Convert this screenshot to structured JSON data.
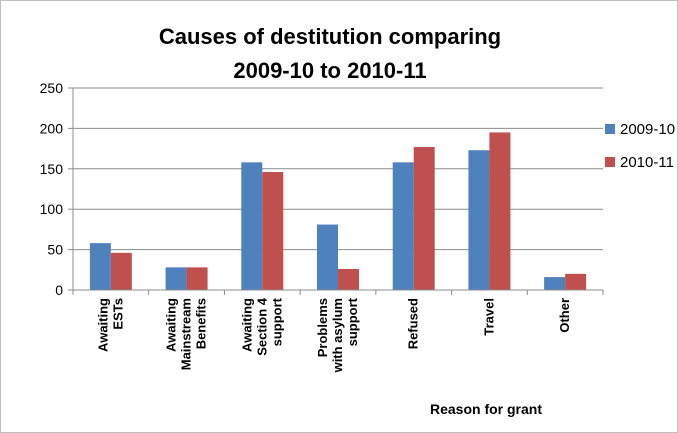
{
  "chart_data": {
    "type": "bar",
    "title": [
      "Causes of destitution comparing",
      "2009-10 to 2010-11"
    ],
    "xlabel": "Reason for grant",
    "ylabel": "",
    "ylim": [
      0,
      250
    ],
    "yticks": [
      0,
      50,
      100,
      150,
      200,
      250
    ],
    "grid": true,
    "legend_position": "right",
    "categories": [
      [
        "Awaiting",
        "ESTs"
      ],
      [
        "Awaiting",
        "Mainstream",
        "Benefits"
      ],
      [
        "Awaiting",
        "Section 4",
        "support"
      ],
      [
        "Problems",
        "with asylum",
        "support"
      ],
      [
        "Refused"
      ],
      [
        "Travel"
      ],
      [
        "Other"
      ]
    ],
    "series": [
      {
        "name": "2009-10",
        "color": "#4f81bd",
        "values": [
          58,
          28,
          158,
          81,
          158,
          173,
          16
        ]
      },
      {
        "name": "2010-11",
        "color": "#c0504d",
        "values": [
          46,
          28,
          146,
          26,
          177,
          195,
          20
        ]
      }
    ]
  }
}
